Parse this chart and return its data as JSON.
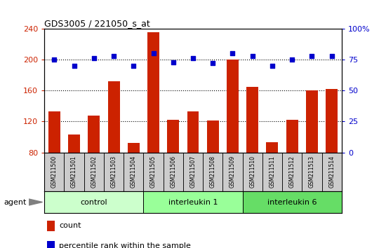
{
  "title": "GDS3005 / 221050_s_at",
  "samples": [
    "GSM211500",
    "GSM211501",
    "GSM211502",
    "GSM211503",
    "GSM211504",
    "GSM211505",
    "GSM211506",
    "GSM211507",
    "GSM211508",
    "GSM211509",
    "GSM211510",
    "GSM211511",
    "GSM211512",
    "GSM211513",
    "GSM211514"
  ],
  "counts": [
    133,
    103,
    128,
    172,
    92,
    235,
    122,
    133,
    121,
    200,
    165,
    93,
    122,
    160,
    162
  ],
  "percentiles": [
    75,
    70,
    76,
    78,
    70,
    80,
    73,
    76,
    72,
    80,
    78,
    70,
    75,
    78,
    78
  ],
  "groups": [
    {
      "label": "control",
      "start": 0,
      "end": 5,
      "color": "#ccffcc"
    },
    {
      "label": "interleukin 1",
      "start": 5,
      "end": 10,
      "color": "#99ff99"
    },
    {
      "label": "interleukin 6",
      "start": 10,
      "end": 15,
      "color": "#66dd66"
    }
  ],
  "bar_color": "#cc2200",
  "dot_color": "#0000cc",
  "ylim_left": [
    80,
    240
  ],
  "ylim_right": [
    0,
    100
  ],
  "yticks_left": [
    80,
    120,
    160,
    200,
    240
  ],
  "yticks_right": [
    0,
    25,
    50,
    75,
    100
  ],
  "grid_lines": [
    120,
    160,
    200
  ],
  "ylabel_left_color": "#cc2200",
  "ylabel_right_color": "#0000cc",
  "plot_bg_color": "#ffffff",
  "tick_area_color": "#cccccc",
  "agent_label": "agent",
  "legend_count_label": "count",
  "legend_pct_label": "percentile rank within the sample"
}
